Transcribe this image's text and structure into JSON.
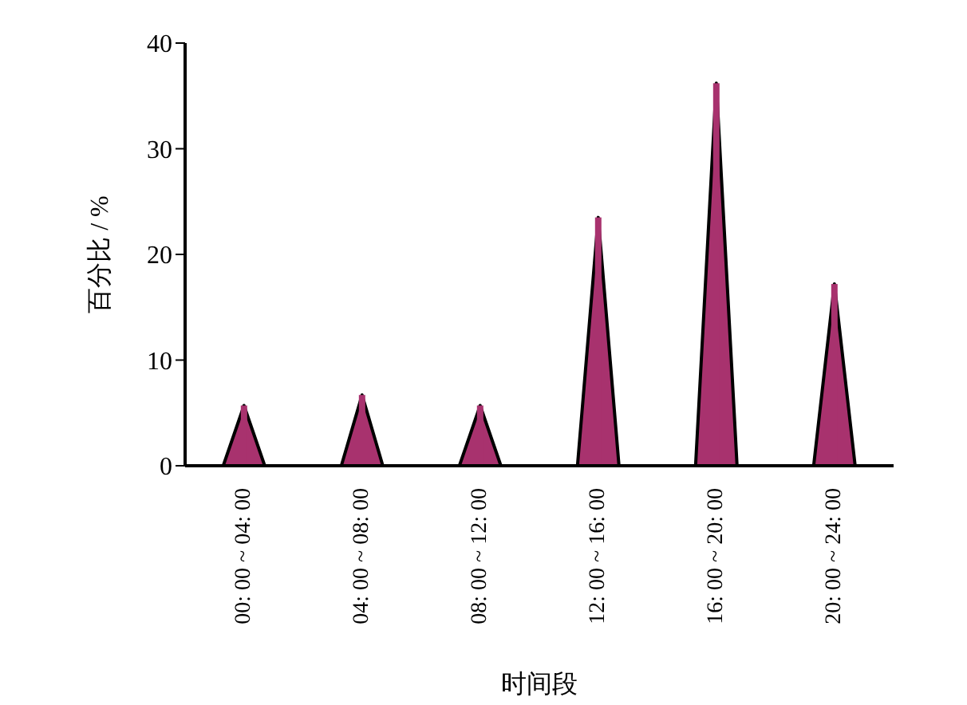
{
  "chart_data": {
    "type": "bar",
    "xlabel": "时间段",
    "ylabel": "百分比 / %",
    "categories": [
      "00: 00 ~ 04: 00",
      "04: 00 ~ 08: 00",
      "08: 00 ~ 12: 00",
      "12: 00 ~ 16: 00",
      "16: 00 ~ 20: 00",
      "20: 00 ~ 24: 00"
    ],
    "values": [
      5.7,
      6.7,
      5.7,
      23.5,
      36.2,
      17.2
    ],
    "color": "#a8326e",
    "ylim": [
      0,
      40
    ],
    "yticks": [
      0,
      10,
      20,
      30,
      40
    ],
    "grid": false,
    "legend": false
  }
}
